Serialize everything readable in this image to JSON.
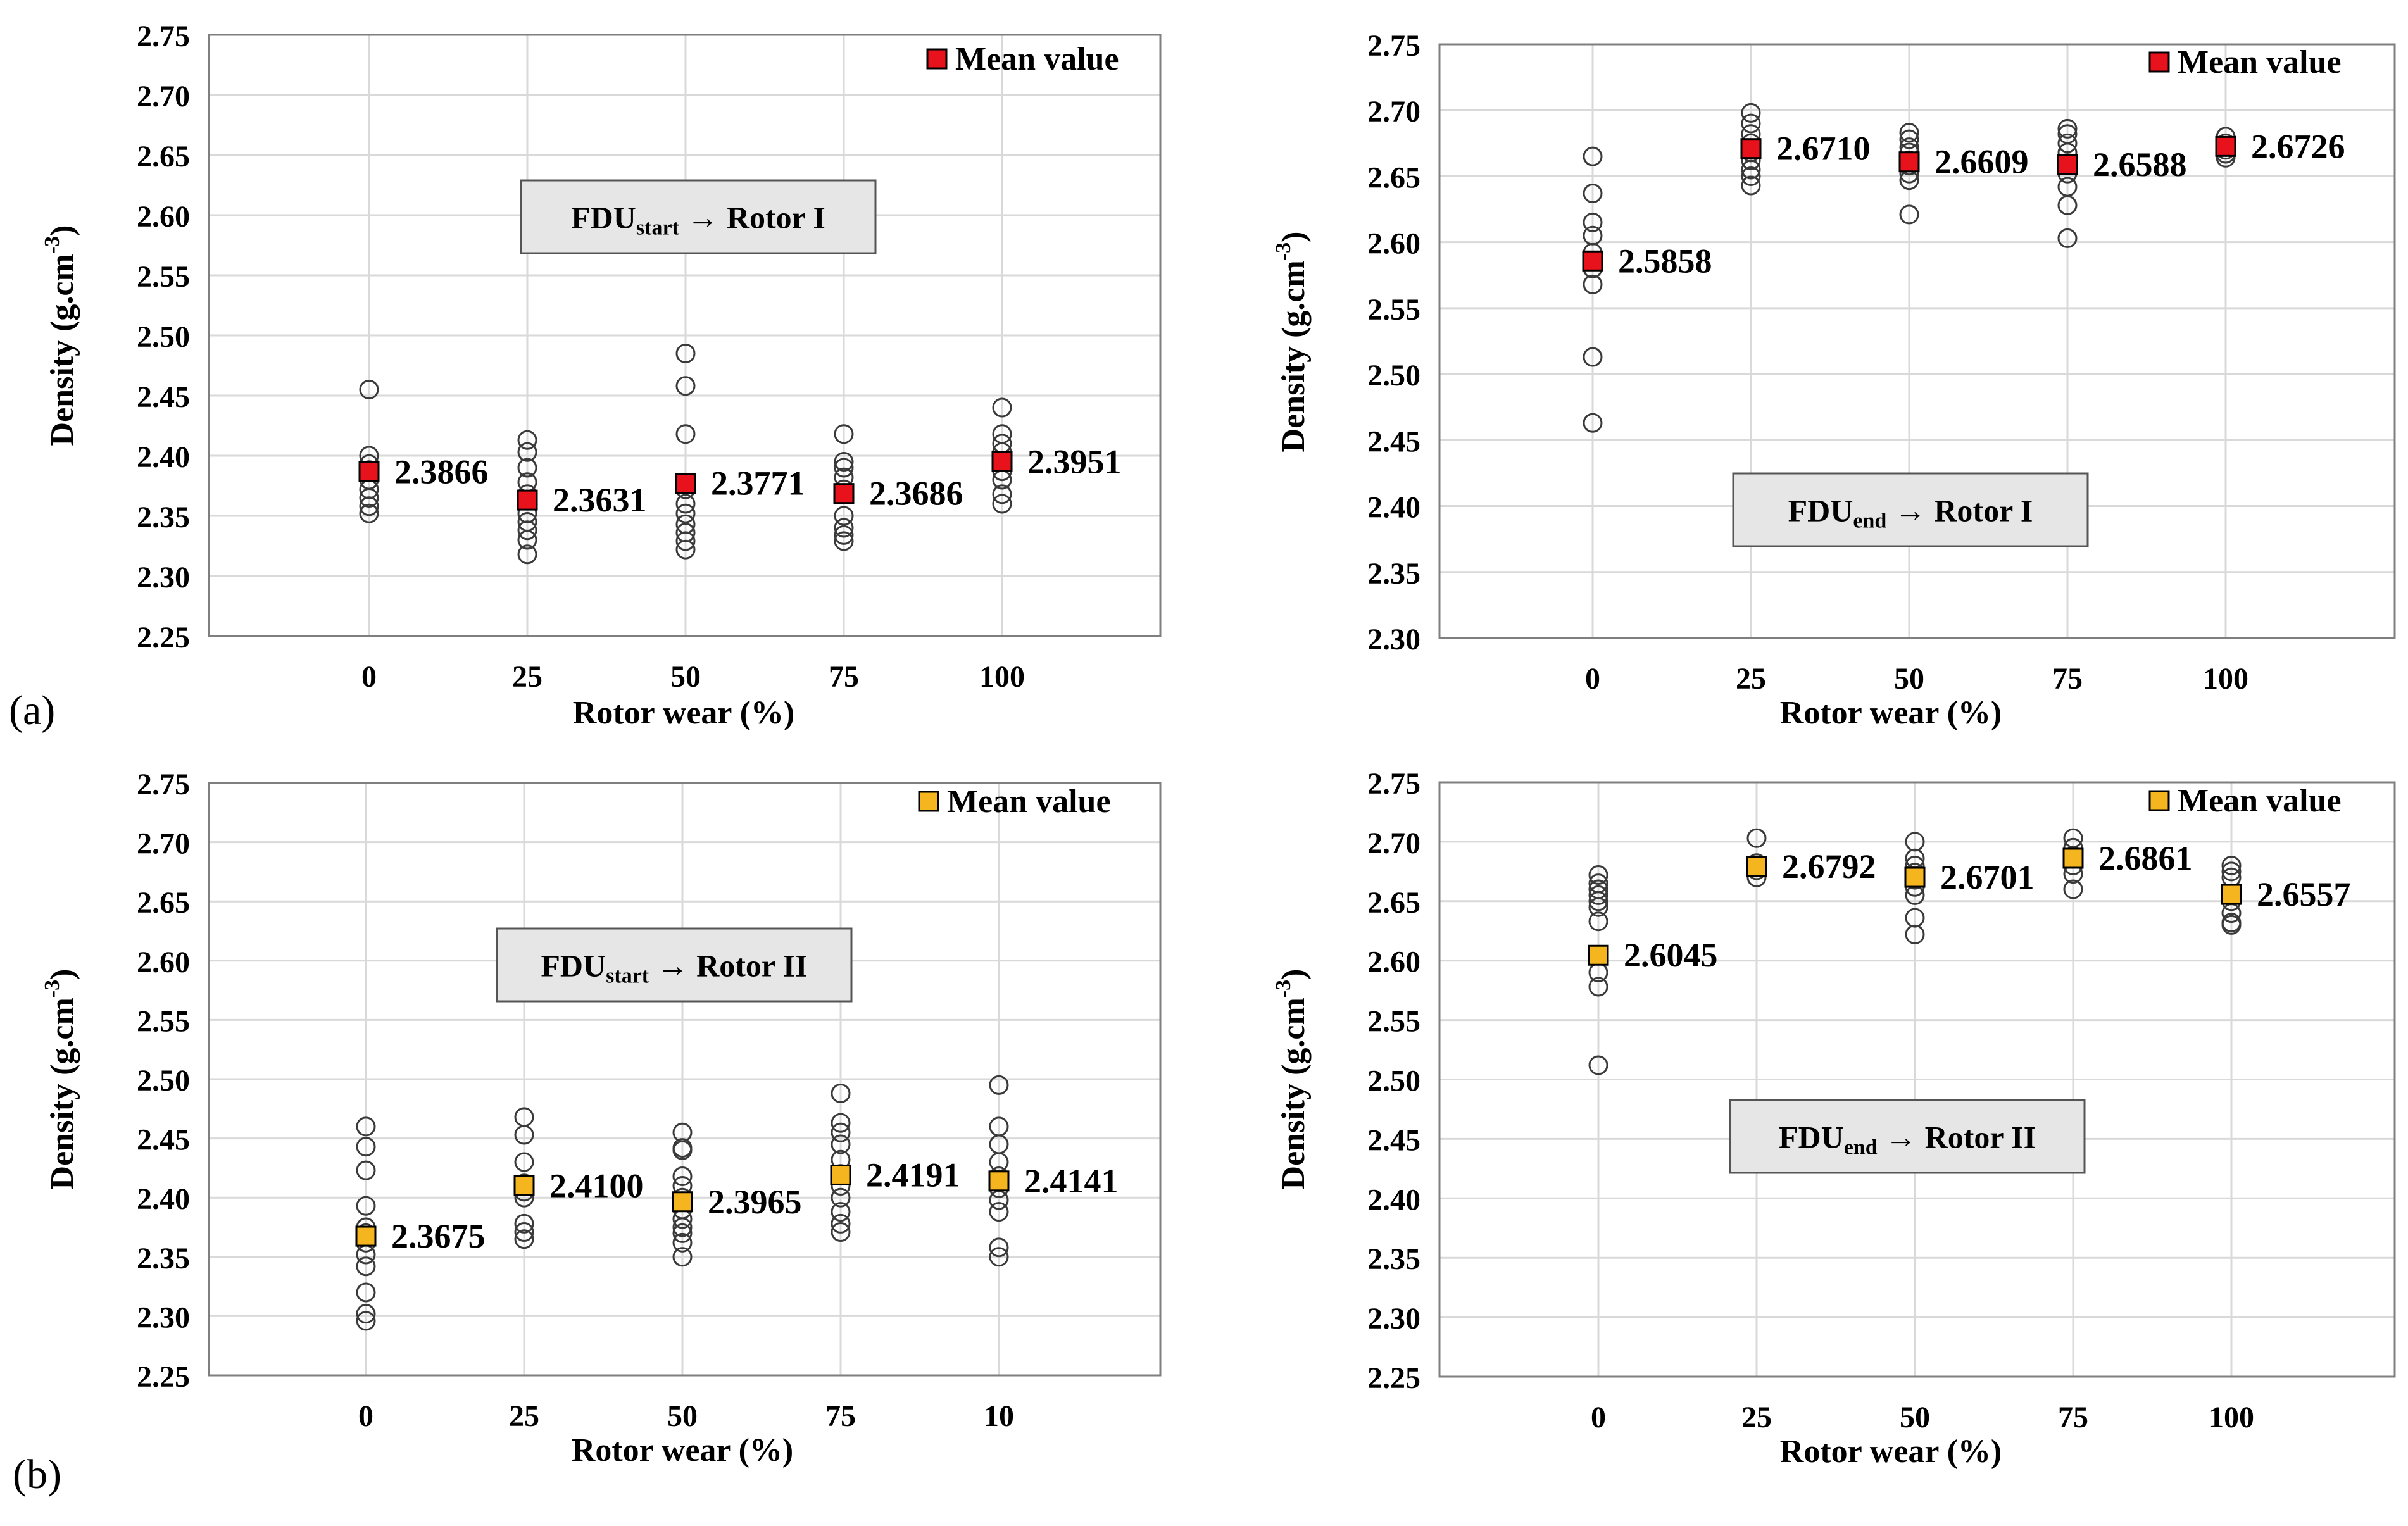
{
  "panel_labels": {
    "a": "(a)",
    "b": "(b)"
  },
  "colors": {
    "red": "#e8121c",
    "orange": "#f5b51e",
    "grid": "#d9d9d9",
    "axis": "#7f7f7f",
    "box_fill": "#e6e6e6"
  },
  "chart_data": [
    {
      "type": "scatter",
      "title": "",
      "box_label": {
        "main": "FDU",
        "sub": "start",
        "rest": " → Rotor I"
      },
      "xlabel": "Rotor wear (%)",
      "ylabel_parts": {
        "main": "Density (g.cm",
        "sup": "-3",
        "end": ")"
      },
      "ylim": [
        2.25,
        2.75
      ],
      "yticks": [
        "2.25",
        "2.30",
        "2.35",
        "2.40",
        "2.45",
        "2.50",
        "2.55",
        "2.60",
        "2.65",
        "2.70",
        "2.75"
      ],
      "categories": [
        "0",
        "25",
        "50",
        "75",
        "100"
      ],
      "legend": "Mean value",
      "mean_color": "red",
      "means": [
        2.3866,
        2.3631,
        2.3771,
        2.3686,
        2.3951
      ],
      "mean_labels": [
        "2.3866",
        "2.3631",
        "2.3771",
        "2.3686",
        "2.3951"
      ],
      "points": [
        [
          2.455,
          2.4,
          2.393,
          2.388,
          2.38,
          2.372,
          2.365,
          2.358,
          2.352
        ],
        [
          2.413,
          2.403,
          2.39,
          2.378,
          2.368,
          2.352,
          2.345,
          2.338,
          2.33,
          2.318
        ],
        [
          2.485,
          2.458,
          2.418,
          2.372,
          2.36,
          2.352,
          2.343,
          2.336,
          2.329,
          2.322
        ],
        [
          2.418,
          2.395,
          2.39,
          2.382,
          2.372,
          2.35,
          2.34,
          2.334,
          2.329
        ],
        [
          2.44,
          2.418,
          2.41,
          2.403,
          2.395,
          2.387,
          2.38,
          2.368,
          2.36
        ]
      ]
    },
    {
      "type": "scatter",
      "title": "",
      "box_label": {
        "main": "FDU",
        "sub": "end",
        "rest": " → Rotor I"
      },
      "xlabel": "Rotor wear (%)",
      "ylabel_parts": {
        "main": "Density (g.cm",
        "sup": "-3",
        "end": ")"
      },
      "ylim": [
        2.3,
        2.75
      ],
      "yticks": [
        "2.30",
        "2.35",
        "2.40",
        "2.45",
        "2.50",
        "2.55",
        "2.60",
        "2.65",
        "2.70",
        "2.75"
      ],
      "categories": [
        "0",
        "25",
        "50",
        "75",
        "100"
      ],
      "legend": "Mean value",
      "mean_color": "red",
      "means": [
        2.5858,
        2.671,
        2.6609,
        2.6588,
        2.6726
      ],
      "mean_labels": [
        "2.5858",
        "2.6710",
        "2.6609",
        "2.6588",
        "2.6726"
      ],
      "points": [
        [
          2.665,
          2.637,
          2.615,
          2.605,
          2.592,
          2.58,
          2.568,
          2.513,
          2.463
        ],
        [
          2.698,
          2.69,
          2.682,
          2.675,
          2.668,
          2.662,
          2.655,
          2.65,
          2.643
        ],
        [
          2.683,
          2.678,
          2.672,
          2.668,
          2.662,
          2.658,
          2.652,
          2.647,
          2.621
        ],
        [
          2.686,
          2.682,
          2.675,
          2.668,
          2.66,
          2.652,
          2.642,
          2.628,
          2.603
        ],
        [
          2.68,
          2.675,
          2.67,
          2.667,
          2.664
        ]
      ]
    },
    {
      "type": "scatter",
      "title": "",
      "box_label": {
        "main": "FDU",
        "sub": "start",
        "rest": " → Rotor II"
      },
      "xlabel": "Rotor wear (%)",
      "ylabel_parts": {
        "main": "Density (g.cm",
        "sup": "-3",
        "end": ")"
      },
      "ylim": [
        2.25,
        2.75
      ],
      "yticks": [
        "2.25",
        "2.30",
        "2.35",
        "2.40",
        "2.45",
        "2.50",
        "2.55",
        "2.60",
        "2.65",
        "2.70",
        "2.75"
      ],
      "categories": [
        "0",
        "25",
        "50",
        "75",
        "10"
      ],
      "legend": "Mean value",
      "mean_color": "orange",
      "means": [
        2.3675,
        2.41,
        2.3965,
        2.4191,
        2.4141
      ],
      "mean_labels": [
        "2.3675",
        "2.4100",
        "2.3965",
        "2.4191",
        "2.4141"
      ],
      "points": [
        [
          2.46,
          2.443,
          2.423,
          2.393,
          2.375,
          2.37,
          2.362,
          2.352,
          2.342,
          2.32,
          2.302,
          2.296
        ],
        [
          2.468,
          2.453,
          2.43,
          2.412,
          2.405,
          2.4,
          2.378,
          2.371,
          2.365
        ],
        [
          2.455,
          2.442,
          2.44,
          2.418,
          2.41,
          2.4,
          2.39,
          2.382,
          2.375,
          2.37,
          2.362,
          2.35
        ],
        [
          2.488,
          2.463,
          2.455,
          2.445,
          2.432,
          2.42,
          2.41,
          2.4,
          2.388,
          2.378,
          2.371
        ],
        [
          2.495,
          2.46,
          2.445,
          2.43,
          2.418,
          2.408,
          2.398,
          2.388,
          2.358,
          2.35
        ]
      ]
    },
    {
      "type": "scatter",
      "title": "",
      "box_label": {
        "main": "FDU",
        "sub": "end",
        "rest": " → Rotor II"
      },
      "xlabel": "Rotor wear (%)",
      "ylabel_parts": {
        "main": "Density (g.cm",
        "sup": "-3",
        "end": ")"
      },
      "ylim": [
        2.25,
        2.75
      ],
      "yticks": [
        "2.25",
        "2.30",
        "2.35",
        "2.40",
        "2.45",
        "2.50",
        "2.55",
        "2.60",
        "2.65",
        "2.70",
        "2.75"
      ],
      "categories": [
        "0",
        "25",
        "50",
        "75",
        "100"
      ],
      "legend": "Mean value",
      "mean_color": "orange",
      "means": [
        2.6045,
        2.6792,
        2.6701,
        2.6861,
        2.6557
      ],
      "mean_labels": [
        "2.6045",
        "2.6792",
        "2.6701",
        "2.6861",
        "2.6557"
      ],
      "points": [
        [
          2.672,
          2.665,
          2.66,
          2.655,
          2.65,
          2.645,
          2.633,
          2.59,
          2.578,
          2.512
        ],
        [
          2.703,
          2.682,
          2.676,
          2.67
        ],
        [
          2.7,
          2.686,
          2.68,
          2.674,
          2.668,
          2.662,
          2.655,
          2.636,
          2.622
        ],
        [
          2.703,
          2.695,
          2.688,
          2.68,
          2.673,
          2.66
        ],
        [
          2.68,
          2.675,
          2.67,
          2.65,
          2.64,
          2.632,
          2.63
        ]
      ]
    }
  ]
}
